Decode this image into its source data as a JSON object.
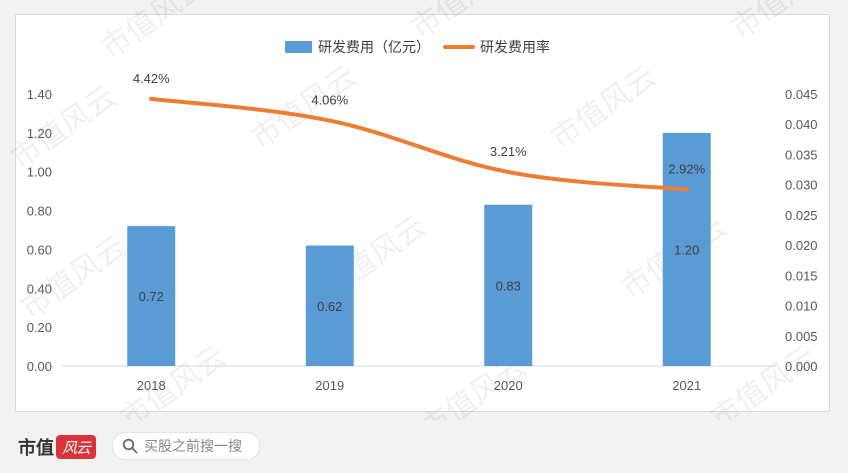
{
  "chart_data": {
    "type": "bar",
    "categories": [
      "2018",
      "2019",
      "2020",
      "2021"
    ],
    "series": [
      {
        "name": "研发费用（亿元）",
        "type": "bar",
        "axis": "left",
        "color": "#5b9bd5",
        "values": [
          0.72,
          0.62,
          0.83,
          1.2
        ],
        "labels": [
          "0.72",
          "0.62",
          "0.83",
          "1.20"
        ]
      },
      {
        "name": "研发费用率",
        "type": "line",
        "axis": "right",
        "color": "#ed7d31",
        "values": [
          0.0442,
          0.0406,
          0.0321,
          0.0292
        ],
        "labels": [
          "4.42%",
          "4.06%",
          "3.21%",
          "2.92%"
        ]
      }
    ],
    "y_left": {
      "ylim": [
        0,
        1.4
      ],
      "ticks": [
        "0.00",
        "0.20",
        "0.40",
        "0.60",
        "0.80",
        "1.00",
        "1.20",
        "1.40"
      ]
    },
    "y_right": {
      "ylim": [
        0,
        0.045
      ],
      "ticks": [
        "0.000",
        "0.005",
        "0.010",
        "0.015",
        "0.020",
        "0.025",
        "0.030",
        "0.035",
        "0.040",
        "0.045"
      ]
    },
    "legend": "top-center",
    "grid": false
  },
  "watermark": "市值风云",
  "footer": {
    "brand": "市值",
    "brand_mark": "风云",
    "search_text": "买股之前搜一搜"
  },
  "colors": {
    "axis_text": "#595959",
    "label_text": "#404040"
  }
}
